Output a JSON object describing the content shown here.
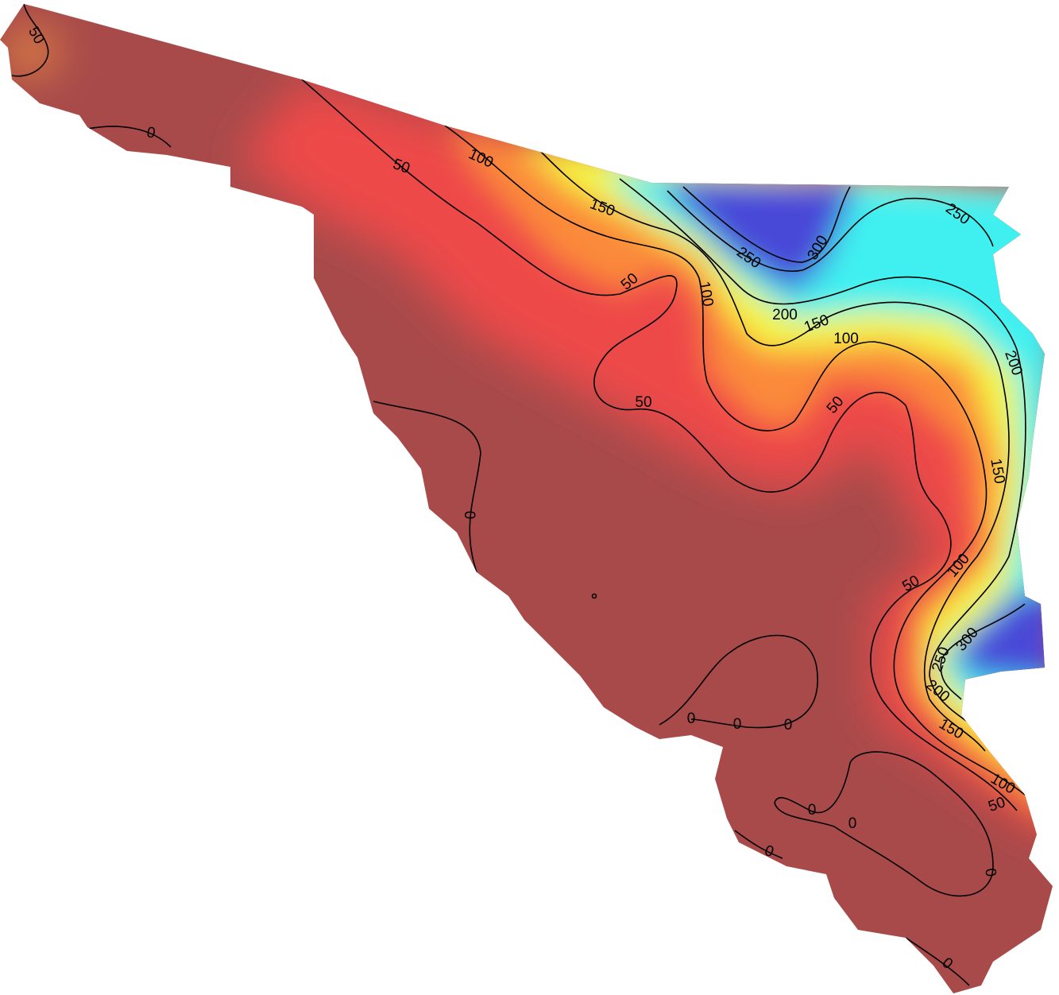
{
  "map": {
    "contour_labels": [
      "50",
      "0",
      "50",
      "100",
      "150",
      "250",
      "300",
      "250",
      "50",
      "100",
      "200",
      "150",
      "100",
      "50",
      "50",
      "200",
      "150",
      "0",
      "100",
      "50",
      "300",
      "250",
      "200",
      "150",
      "0",
      "0",
      "0",
      "100",
      "50",
      "0",
      "0",
      "0",
      "0",
      "0"
    ]
  }
}
